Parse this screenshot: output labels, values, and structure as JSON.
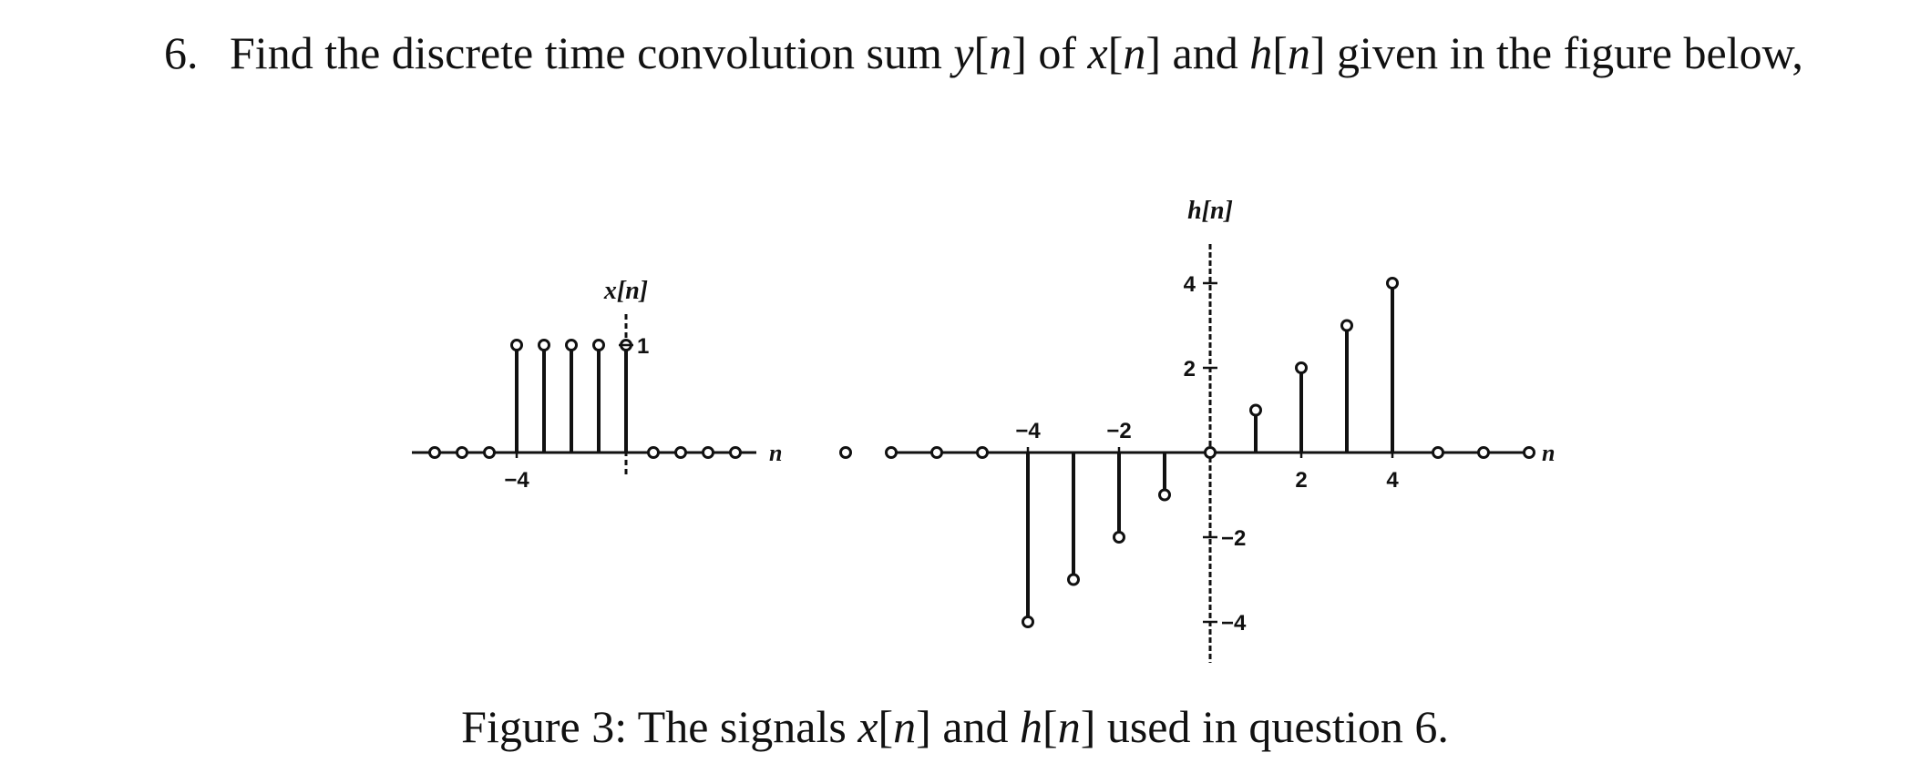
{
  "question": {
    "number": "6.",
    "text_a": "Find the discrete time convolution sum",
    "sym_y": "y",
    "sym_x": "x",
    "sym_h": "h",
    "of": "of",
    "and": "and",
    "text_b": "given in the figure below,"
  },
  "chart_data": [
    {
      "type": "stem",
      "signal": "x[n]",
      "title": "",
      "ylabel": "x[n]",
      "xlabel": "n",
      "n": [
        -7,
        -6,
        -5,
        -4,
        -3,
        -2,
        -1,
        0,
        1,
        2,
        3,
        4
      ],
      "values": [
        0,
        0,
        0,
        1,
        1,
        1,
        1,
        1,
        0,
        0,
        0,
        0
      ],
      "x_tick_labels": [
        "-4"
      ],
      "y_tick_labels": [
        "1"
      ]
    },
    {
      "type": "stem",
      "signal": "h[n]",
      "title": "",
      "ylabel": "h[n]",
      "xlabel": "n",
      "n": [
        -8,
        -7,
        -6,
        -5,
        -4,
        -3,
        -2,
        -1,
        0,
        1,
        2,
        3,
        4,
        5,
        6,
        7
      ],
      "values": [
        0,
        0,
        0,
        0,
        -4,
        -3,
        -2,
        -1,
        0,
        1,
        2,
        3,
        4,
        0,
        0,
        0
      ],
      "x_tick_labels": [
        "-4",
        "-2",
        "2",
        "4"
      ],
      "y_tick_labels": [
        "4",
        "2",
        "-2",
        "-4"
      ]
    }
  ],
  "caption": {
    "prefix": "Figure 3: The signals",
    "sym_x": "x",
    "sym_h": "h",
    "and": "and",
    "suffix": "used in question 6."
  }
}
